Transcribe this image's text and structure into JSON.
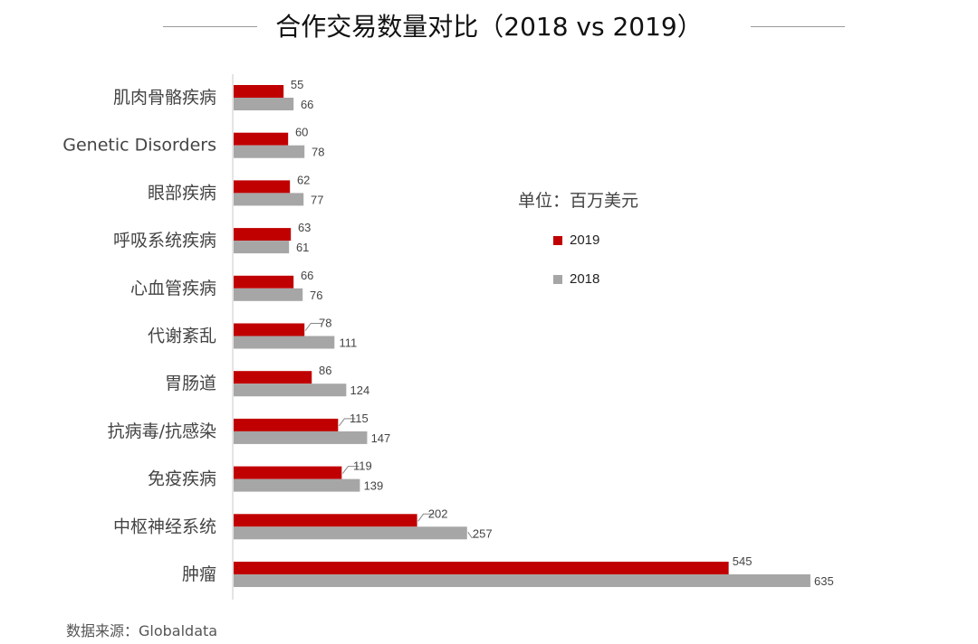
{
  "chart_data": {
    "type": "bar",
    "title": "合作交易数量对比（2018 vs 2019）",
    "unit_label": "单位：百万美元",
    "source": "数据来源：Globaldata",
    "categories": [
      "肌肉骨骼疾病",
      "Genetic Disorders",
      "眼部疾病",
      "呼吸系统疾病",
      "心血管疾病",
      "代谢紊乱",
      "胃肠道",
      "抗病毒/抗感染",
      "免疫疾病",
      "中枢神经系统",
      "肿瘤"
    ],
    "series": [
      {
        "name": "2019",
        "color": "#c00000",
        "values": [
          55,
          60,
          62,
          63,
          66,
          78,
          86,
          115,
          119,
          202,
          545
        ]
      },
      {
        "name": "2018",
        "color": "#a6a6a6",
        "values": [
          66,
          78,
          77,
          61,
          76,
          111,
          124,
          147,
          139,
          257,
          635
        ]
      }
    ],
    "orientation": "horizontal",
    "legend_position": "right",
    "grid": false
  }
}
